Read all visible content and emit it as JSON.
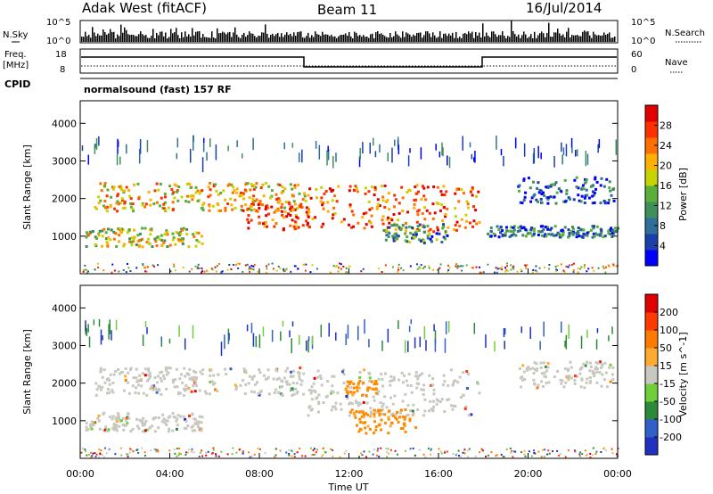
{
  "header": {
    "station": "Adak West (fitACF)",
    "beam": "Beam 11",
    "date": "16/Jul/2014"
  },
  "summary": {
    "nsky_label": "N.Sky",
    "nsky_ticks": [
      "10^5",
      "10^0"
    ],
    "nsearch_label": "N.Search",
    "nsearch_ticks": [
      "10^5",
      "10^0"
    ],
    "freq_label": "Freq.",
    "freq_unit": "[MHz]",
    "freq_ticks": [
      "18",
      "8"
    ],
    "nave_label": "Nave",
    "nave_ticks": [
      "60",
      "0"
    ],
    "cpid_label": "CPID",
    "cpid_text": "normalsound (fast) 157 RF"
  },
  "chart_data": [
    {
      "type": "heatmap",
      "name": "power-panel",
      "ylabel": "Slant Range [km]",
      "yticks": [
        "4000",
        "3000",
        "2000",
        "1000"
      ],
      "ytick_values": [
        4000,
        3000,
        2000,
        1000
      ],
      "ylim": [
        0,
        4600
      ],
      "xlim_hours": [
        0,
        24
      ],
      "colorbar": {
        "label": "Power [dB]",
        "ticks": [
          "28",
          "24",
          "20",
          "16",
          "12",
          "8",
          "4"
        ],
        "colors": [
          "#0000ff",
          "#1a3fa8",
          "#2f6f9a",
          "#3f8f5a",
          "#5aae3a",
          "#c8d400",
          "#ffb000",
          "#ff7000",
          "#ff3000",
          "#e00000"
        ]
      },
      "bands": [
        {
          "x": [
            0.2,
            5.4
          ],
          "y": [
            750,
            1250
          ],
          "level": 0.55
        },
        {
          "x": [
            0.6,
            10
          ],
          "y": [
            1700,
            2450
          ],
          "level": 0.65
        },
        {
          "x": [
            7.2,
            10.2
          ],
          "y": [
            1200,
            1900
          ],
          "level": 0.85
        },
        {
          "x": [
            10,
            17.8
          ],
          "y": [
            1150,
            2400
          ],
          "level": 0.8
        },
        {
          "x": [
            13.5,
            16.5
          ],
          "y": [
            850,
            1350
          ],
          "level": 0.3
        },
        {
          "x": [
            18,
            24
          ],
          "y": [
            1000,
            1300
          ],
          "level": 0.25
        },
        {
          "x": [
            19.5,
            23.8
          ],
          "y": [
            1900,
            2600
          ],
          "level": 0.2
        }
      ]
    },
    {
      "type": "heatmap",
      "name": "velocity-panel",
      "ylabel": "Slant Range [km]",
      "yticks": [
        "4000",
        "3000",
        "2000",
        "1000"
      ],
      "ytick_values": [
        4000,
        3000,
        2000,
        1000
      ],
      "ylim": [
        0,
        4600
      ],
      "xlabel": "Time UT",
      "xticks": [
        "00:00",
        "04:00",
        "08:00",
        "12:00",
        "16:00",
        "20:00",
        "00:00"
      ],
      "xtick_hours": [
        0,
        4,
        8,
        12,
        16,
        20,
        24
      ],
      "xlim_hours": [
        0,
        24
      ],
      "colorbar": {
        "label": "Velocity [m s^-1]",
        "ticks": [
          "200",
          "100",
          "50",
          "15",
          "-15",
          "-50",
          "-100",
          "-200"
        ],
        "colors": [
          "#2030c0",
          "#3060c8",
          "#2a8a3a",
          "#6fcf3a",
          "#c8c8c0",
          "#ffaa30",
          "#ff7a00",
          "#ff3a00",
          "#e00000"
        ]
      },
      "bands": [
        {
          "x": [
            0.2,
            5.4
          ],
          "y": [
            750,
            1250
          ],
          "tone": "gray"
        },
        {
          "x": [
            0.6,
            10
          ],
          "y": [
            1700,
            2450
          ],
          "tone": "gray"
        },
        {
          "x": [
            10,
            17.8
          ],
          "y": [
            1150,
            2400
          ],
          "tone": "gray"
        },
        {
          "x": [
            11.7,
            13.2
          ],
          "y": [
            1700,
            2100
          ],
          "tone": "orange"
        },
        {
          "x": [
            12,
            15
          ],
          "y": [
            700,
            1350
          ],
          "tone": "orange"
        },
        {
          "x": [
            19.5,
            23.8
          ],
          "y": [
            1900,
            2600
          ],
          "tone": "gray"
        }
      ]
    }
  ]
}
